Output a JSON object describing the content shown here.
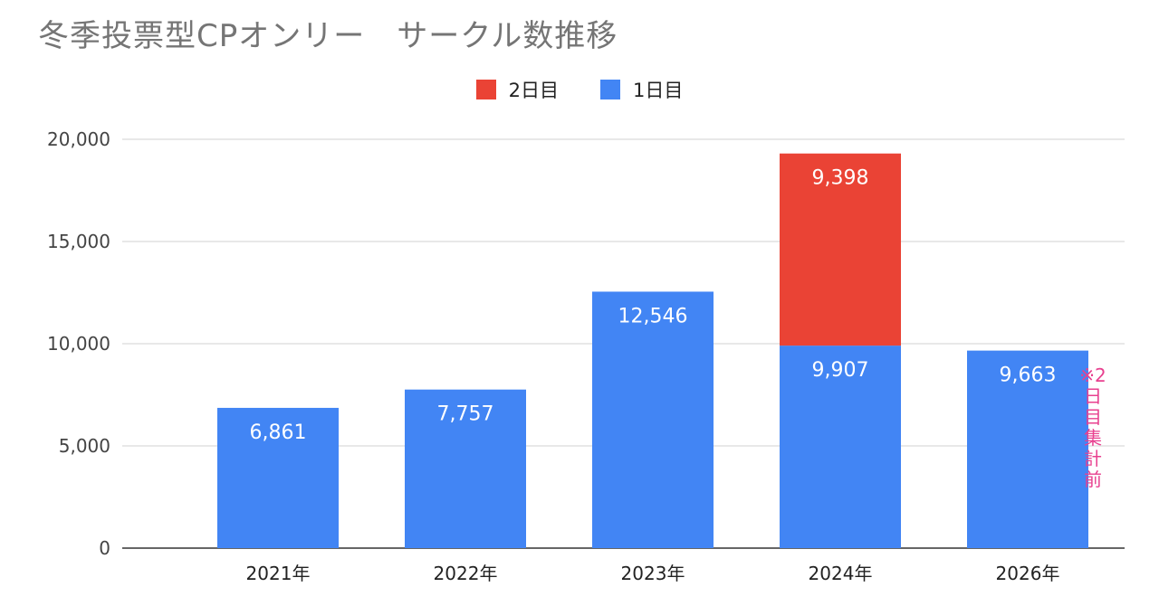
{
  "chart_data": {
    "type": "bar",
    "stacked": true,
    "title": "冬季投票型CPオンリー　サークル数推移",
    "categories": [
      "2021年",
      "2022年",
      "2023年",
      "2024年",
      "2026年"
    ],
    "series": [
      {
        "name": "1日目",
        "color": "#4285f4",
        "values": [
          6861,
          7757,
          12546,
          9907,
          9663
        ]
      },
      {
        "name": "2日目",
        "color": "#ea4335",
        "values": [
          null,
          null,
          null,
          9398,
          null
        ]
      }
    ],
    "data_labels": [
      [
        "6,861",
        "7,757",
        "12,546",
        "9,907",
        "9,663"
      ],
      [
        "",
        "",
        "",
        "9,398",
        ""
      ]
    ],
    "legend_order": [
      1,
      0
    ],
    "legend_position": "top",
    "ylim": [
      0,
      20000
    ],
    "yticks": [
      0,
      5000,
      10000,
      15000,
      20000
    ],
    "ytick_labels": [
      "0",
      "5,000",
      "10,000",
      "15,000",
      "20,000"
    ],
    "grid": true,
    "annotation": "※2日目集計前"
  }
}
